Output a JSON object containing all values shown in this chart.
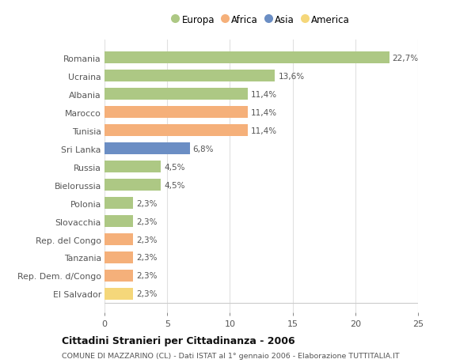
{
  "countries": [
    "El Salvador",
    "Rep. Dem. d/Congo",
    "Tanzania",
    "Rep. del Congo",
    "Slovacchia",
    "Polonia",
    "Bielorussia",
    "Russia",
    "Sri Lanka",
    "Tunisia",
    "Marocco",
    "Albania",
    "Ucraina",
    "Romania"
  ],
  "values": [
    2.3,
    2.3,
    2.3,
    2.3,
    2.3,
    2.3,
    4.5,
    4.5,
    6.8,
    11.4,
    11.4,
    11.4,
    13.6,
    22.7
  ],
  "labels": [
    "2,3%",
    "2,3%",
    "2,3%",
    "2,3%",
    "2,3%",
    "2,3%",
    "4,5%",
    "4,5%",
    "6,8%",
    "11,4%",
    "11,4%",
    "11,4%",
    "13,6%",
    "22,7%"
  ],
  "colors": [
    "#f5d77a",
    "#f5b07a",
    "#f5b07a",
    "#f5b07a",
    "#adc884",
    "#adc884",
    "#adc884",
    "#adc884",
    "#6b8ec4",
    "#f5b07a",
    "#f5b07a",
    "#adc884",
    "#adc884",
    "#adc884"
  ],
  "legend": [
    {
      "label": "Europa",
      "color": "#adc884"
    },
    {
      "label": "Africa",
      "color": "#f5b07a"
    },
    {
      "label": "Asia",
      "color": "#6b8ec4"
    },
    {
      "label": "America",
      "color": "#f5d77a"
    }
  ],
  "xlim": [
    0,
    25
  ],
  "xticks": [
    0,
    5,
    10,
    15,
    20,
    25
  ],
  "title": "Cittadini Stranieri per Cittadinanza - 2006",
  "subtitle": "COMUNE DI MAZZARINO (CL) - Dati ISTAT al 1° gennaio 2006 - Elaborazione TUTTITALIA.IT",
  "background_color": "#ffffff",
  "grid_color": "#e0e0e0",
  "bar_height": 0.65
}
